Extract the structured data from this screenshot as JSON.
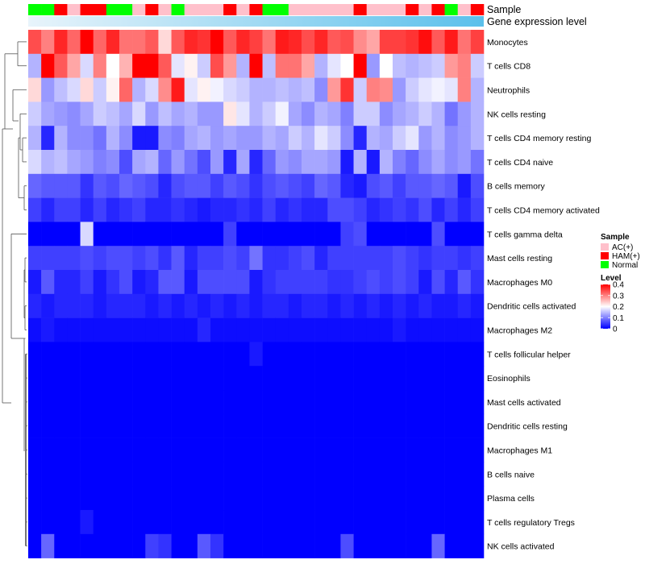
{
  "chart_data": {
    "type": "heatmap",
    "title": "",
    "annotation_labels": {
      "sample": "Sample",
      "gene": "Gene expression level"
    },
    "colors": {
      "low": "#0000FF",
      "mid": "#FFFFFF",
      "high": "#FF0000",
      "AC(+)": "#FFC0CB",
      "HAM(+)": "#FF0000",
      "Normal": "#00FF00",
      "gene_start": "#E8F4FB",
      "gene_end": "#5BC0EB",
      "dendrogram": "#555555"
    },
    "value_range": [
      0,
      0.4
    ],
    "legend": {
      "sample_title": "Sample",
      "sample_entries": [
        "AC(+)",
        "HAM(+)",
        "Normal"
      ],
      "level_title": "Level",
      "level_ticks": [
        "0.4",
        "0.3",
        "0.2",
        "0.1",
        "0"
      ],
      "level_tick_values": [
        0.4,
        0.3,
        0.2,
        0.1,
        0
      ]
    },
    "samples": [
      "Normal",
      "Normal",
      "HAM(+)",
      "AC(+)",
      "HAM(+)",
      "HAM(+)",
      "Normal",
      "Normal",
      "AC(+)",
      "HAM(+)",
      "AC(+)",
      "Normal",
      "AC(+)",
      "AC(+)",
      "AC(+)",
      "HAM(+)",
      "AC(+)",
      "HAM(+)",
      "Normal",
      "Normal",
      "AC(+)",
      "AC(+)",
      "AC(+)",
      "AC(+)",
      "AC(+)",
      "HAM(+)",
      "AC(+)",
      "AC(+)",
      "AC(+)",
      "HAM(+)",
      "AC(+)",
      "HAM(+)",
      "Normal",
      "AC(+)",
      "HAM(+)"
    ],
    "rows": [
      {
        "label": "Monocytes",
        "values": [
          0.34,
          0.3,
          0.37,
          0.32,
          0.4,
          0.32,
          0.37,
          0.31,
          0.31,
          0.33,
          0.23,
          0.33,
          0.37,
          0.36,
          0.4,
          0.33,
          0.37,
          0.35,
          0.31,
          0.38,
          0.37,
          0.34,
          0.37,
          0.33,
          0.34,
          0.29,
          0.27,
          0.35,
          0.35,
          0.36,
          0.39,
          0.33,
          0.38,
          0.31,
          0.35
        ]
      },
      {
        "label": "T cells CD8",
        "values": [
          0.14,
          0.4,
          0.33,
          0.27,
          0.17,
          0.3,
          0.2,
          0.26,
          0.42,
          0.4,
          0.33,
          0.18,
          0.21,
          0.16,
          0.34,
          0.28,
          0.14,
          0.4,
          0.15,
          0.31,
          0.31,
          0.27,
          0.14,
          0.18,
          0.2,
          0.4,
          0.12,
          0.2,
          0.15,
          0.14,
          0.15,
          0.16,
          0.28,
          0.3,
          0.16
        ]
      },
      {
        "label": "Neutrophils",
        "values": [
          0.23,
          0.12,
          0.15,
          0.17,
          0.23,
          0.16,
          0.21,
          0.32,
          0.14,
          0.17,
          0.29,
          0.38,
          0.18,
          0.21,
          0.19,
          0.17,
          0.16,
          0.14,
          0.14,
          0.15,
          0.14,
          0.15,
          0.11,
          0.28,
          0.36,
          0.16,
          0.3,
          0.29,
          0.12,
          0.16,
          0.18,
          0.19,
          0.18,
          0.3,
          0.14
        ]
      },
      {
        "label": "NK cells resting",
        "values": [
          0.16,
          0.13,
          0.12,
          0.11,
          0.13,
          0.16,
          0.15,
          0.13,
          0.17,
          0.12,
          0.15,
          0.13,
          0.14,
          0.12,
          0.12,
          0.22,
          0.18,
          0.14,
          0.16,
          0.19,
          0.13,
          0.11,
          0.14,
          0.13,
          0.1,
          0.16,
          0.16,
          0.11,
          0.13,
          0.14,
          0.16,
          0.14,
          0.09,
          0.12,
          0.14
        ]
      },
      {
        "label": "T cells CD4 memory resting",
        "values": [
          0.14,
          0.03,
          0.14,
          0.11,
          0.11,
          0.09,
          0.14,
          0.11,
          0.02,
          0.02,
          0.11,
          0.1,
          0.13,
          0.14,
          0.12,
          0.13,
          0.12,
          0.12,
          0.14,
          0.13,
          0.16,
          0.14,
          0.18,
          0.16,
          0.11,
          0.03,
          0.14,
          0.13,
          0.16,
          0.18,
          0.12,
          0.14,
          0.11,
          0.12,
          0.14
        ]
      },
      {
        "label": "T cells CD4 naive",
        "values": [
          0.17,
          0.14,
          0.15,
          0.13,
          0.12,
          0.1,
          0.11,
          0.06,
          0.13,
          0.14,
          0.08,
          0.12,
          0.09,
          0.06,
          0.12,
          0.03,
          0.13,
          0.03,
          0.08,
          0.12,
          0.11,
          0.13,
          0.13,
          0.12,
          0.02,
          0.14,
          0.02,
          0.14,
          0.1,
          0.08,
          0.11,
          0.13,
          0.11,
          0.12,
          0.09
        ]
      },
      {
        "label": "B cells memory",
        "values": [
          0.08,
          0.07,
          0.07,
          0.07,
          0.04,
          0.07,
          0.06,
          0.08,
          0.07,
          0.06,
          0.03,
          0.06,
          0.07,
          0.07,
          0.05,
          0.07,
          0.06,
          0.04,
          0.06,
          0.07,
          0.06,
          0.05,
          0.08,
          0.07,
          0.03,
          0.02,
          0.06,
          0.07,
          0.05,
          0.07,
          0.07,
          0.08,
          0.07,
          0.02,
          0.06
        ]
      },
      {
        "label": "T cells CD4 memory activated",
        "values": [
          0.05,
          0.03,
          0.05,
          0.05,
          0.03,
          0.05,
          0.03,
          0.04,
          0.05,
          0.03,
          0.03,
          0.04,
          0.03,
          0.02,
          0.03,
          0.03,
          0.04,
          0.03,
          0.05,
          0.03,
          0.04,
          0.03,
          0.03,
          0.06,
          0.06,
          0.05,
          0.03,
          0.04,
          0.05,
          0.04,
          0.06,
          0.03,
          0.05,
          0.03,
          0.05
        ]
      },
      {
        "label": "T cells gamma delta",
        "values": [
          0.0,
          0.0,
          0.0,
          0.0,
          0.17,
          0.0,
          0.0,
          0.0,
          0.0,
          0.0,
          0.0,
          0.0,
          0.0,
          0.0,
          0.0,
          0.05,
          0.0,
          0.0,
          0.0,
          0.0,
          0.0,
          0.0,
          0.0,
          0.0,
          0.05,
          0.06,
          0.0,
          0.0,
          0.0,
          0.0,
          0.0,
          0.06,
          0.0,
          0.0,
          0.0
        ]
      },
      {
        "label": "Mast cells resting",
        "values": [
          0.05,
          0.05,
          0.05,
          0.05,
          0.06,
          0.05,
          0.06,
          0.06,
          0.05,
          0.06,
          0.04,
          0.07,
          0.03,
          0.05,
          0.05,
          0.06,
          0.05,
          0.09,
          0.04,
          0.04,
          0.05,
          0.06,
          0.03,
          0.05,
          0.05,
          0.05,
          0.05,
          0.05,
          0.06,
          0.05,
          0.04,
          0.05,
          0.05,
          0.04,
          0.05
        ]
      },
      {
        "label": "Macrophages M0",
        "values": [
          0.02,
          0.07,
          0.03,
          0.03,
          0.05,
          0.02,
          0.04,
          0.06,
          0.02,
          0.03,
          0.07,
          0.07,
          0.02,
          0.06,
          0.06,
          0.06,
          0.06,
          0.02,
          0.04,
          0.05,
          0.05,
          0.05,
          0.05,
          0.04,
          0.04,
          0.05,
          0.06,
          0.05,
          0.06,
          0.05,
          0.02,
          0.06,
          0.03,
          0.07,
          0.04
        ]
      },
      {
        "label": "Dendritic cells activated",
        "values": [
          0.03,
          0.02,
          0.03,
          0.03,
          0.03,
          0.02,
          0.03,
          0.03,
          0.03,
          0.02,
          0.03,
          0.02,
          0.03,
          0.02,
          0.03,
          0.02,
          0.03,
          0.02,
          0.03,
          0.03,
          0.02,
          0.03,
          0.03,
          0.02,
          0.03,
          0.02,
          0.03,
          0.02,
          0.03,
          0.02,
          0.03,
          0.02,
          0.02,
          0.03,
          0.02
        ]
      },
      {
        "label": "Macrophages M2",
        "values": [
          0.01,
          0.02,
          0.01,
          0.01,
          0.01,
          0.01,
          0.01,
          0.01,
          0.01,
          0.01,
          0.01,
          0.01,
          0.01,
          0.03,
          0.01,
          0.01,
          0.01,
          0.01,
          0.01,
          0.01,
          0.01,
          0.01,
          0.01,
          0.01,
          0.01,
          0.01,
          0.01,
          0.01,
          0.02,
          0.01,
          0.01,
          0.01,
          0.01,
          0.01,
          0.01
        ]
      },
      {
        "label": "T cells follicular helper",
        "values": [
          0.0,
          0.0,
          0.0,
          0.0,
          0.0,
          0.0,
          0.0,
          0.0,
          0.0,
          0.0,
          0.0,
          0.0,
          0.0,
          0.0,
          0.0,
          0.0,
          0.0,
          0.02,
          0.0,
          0.0,
          0.0,
          0.0,
          0.0,
          0.0,
          0.0,
          0.0,
          0.0,
          0.0,
          0.0,
          0.0,
          0.0,
          0.0,
          0.0,
          0.0,
          0.0
        ]
      },
      {
        "label": "Eosinophils",
        "values": [
          0,
          0,
          0,
          0,
          0,
          0,
          0,
          0,
          0,
          0,
          0,
          0,
          0,
          0,
          0,
          0,
          0,
          0,
          0,
          0,
          0,
          0,
          0,
          0,
          0,
          0,
          0,
          0,
          0,
          0,
          0,
          0,
          0,
          0,
          0
        ]
      },
      {
        "label": "Mast cells activated",
        "values": [
          0,
          0,
          0,
          0,
          0,
          0,
          0,
          0,
          0,
          0,
          0,
          0,
          0,
          0,
          0,
          0,
          0,
          0,
          0,
          0,
          0,
          0,
          0,
          0,
          0,
          0,
          0,
          0,
          0,
          0,
          0,
          0,
          0,
          0,
          0
        ]
      },
      {
        "label": "Dendritic cells resting",
        "values": [
          0,
          0,
          0,
          0,
          0,
          0,
          0,
          0,
          0,
          0,
          0,
          0,
          0,
          0,
          0,
          0,
          0,
          0,
          0,
          0,
          0,
          0,
          0,
          0,
          0,
          0,
          0,
          0,
          0,
          0,
          0,
          0,
          0,
          0,
          0
        ]
      },
      {
        "label": "Macrophages M1",
        "values": [
          0,
          0,
          0,
          0,
          0,
          0,
          0,
          0,
          0,
          0,
          0,
          0,
          0,
          0,
          0,
          0,
          0,
          0,
          0,
          0,
          0,
          0,
          0,
          0,
          0,
          0,
          0,
          0,
          0,
          0,
          0,
          0,
          0,
          0,
          0
        ]
      },
      {
        "label": "B cells naive",
        "values": [
          0,
          0,
          0,
          0,
          0,
          0,
          0,
          0,
          0,
          0,
          0,
          0,
          0,
          0,
          0,
          0,
          0,
          0,
          0,
          0,
          0,
          0,
          0,
          0,
          0,
          0,
          0,
          0,
          0,
          0,
          0,
          0,
          0,
          0,
          0
        ]
      },
      {
        "label": "Plasma cells",
        "values": [
          0,
          0,
          0,
          0,
          0,
          0,
          0,
          0,
          0,
          0,
          0,
          0,
          0,
          0,
          0,
          0,
          0,
          0,
          0,
          0,
          0,
          0,
          0,
          0,
          0,
          0,
          0,
          0,
          0,
          0,
          0,
          0,
          0,
          0,
          0
        ]
      },
      {
        "label": "T cells regulatory  Tregs",
        "values": [
          0.0,
          0.0,
          0.0,
          0.0,
          0.02,
          0.0,
          0.0,
          0.0,
          0.0,
          0.0,
          0.0,
          0.0,
          0.0,
          0.0,
          0.0,
          0.0,
          0.0,
          0.0,
          0.0,
          0.0,
          0.0,
          0.0,
          0.0,
          0.0,
          0.0,
          0.0,
          0.0,
          0.0,
          0.0,
          0.0,
          0.0,
          0.0,
          0.0,
          0.0,
          0.0
        ]
      },
      {
        "label": "NK cells activated",
        "values": [
          0.0,
          0.08,
          0.0,
          0.0,
          0.0,
          0.0,
          0.0,
          0.0,
          0.0,
          0.05,
          0.04,
          0.0,
          0.0,
          0.07,
          0.04,
          0.0,
          0.0,
          0.0,
          0.0,
          0.0,
          0.0,
          0.0,
          0.0,
          0.0,
          0.06,
          0.0,
          0.0,
          0.0,
          0.0,
          0.0,
          0.0,
          0.08,
          0.0,
          0.0,
          0.0
        ]
      }
    ]
  }
}
